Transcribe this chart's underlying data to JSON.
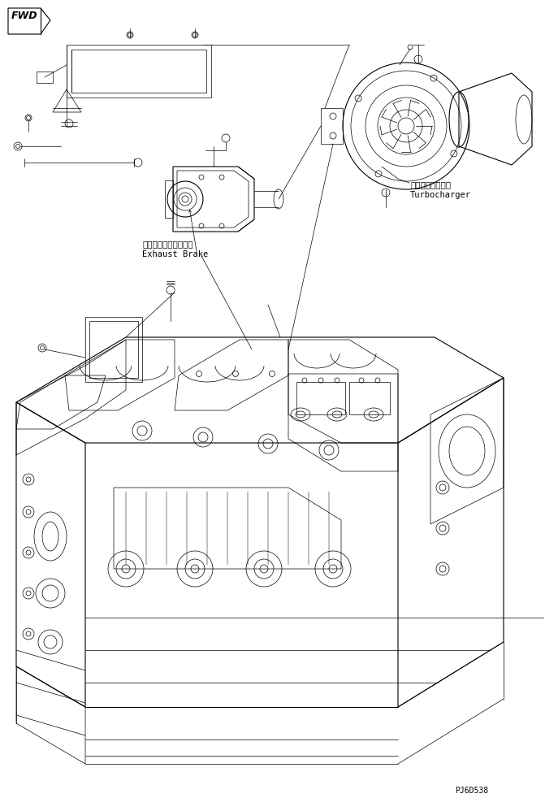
{
  "background_color": "#ffffff",
  "line_color": "#000000",
  "fig_width": 6.71,
  "fig_height": 9.82,
  "dpi": 100,
  "fwd_label": "FWD",
  "turbocharger_ja": "ターボチャージャ",
  "turbocharger_en": "Turbocharger",
  "exhaust_brake_ja": "エキゾーストブレーキ",
  "exhaust_brake_en": "Exhaust Brake",
  "part_number": "PJ6D538",
  "font_size_label": 7.0,
  "font_size_partno": 7.0,
  "font_family": "monospace",
  "lw_thin": 0.5,
  "lw_med": 0.8,
  "lw_thick": 1.2
}
